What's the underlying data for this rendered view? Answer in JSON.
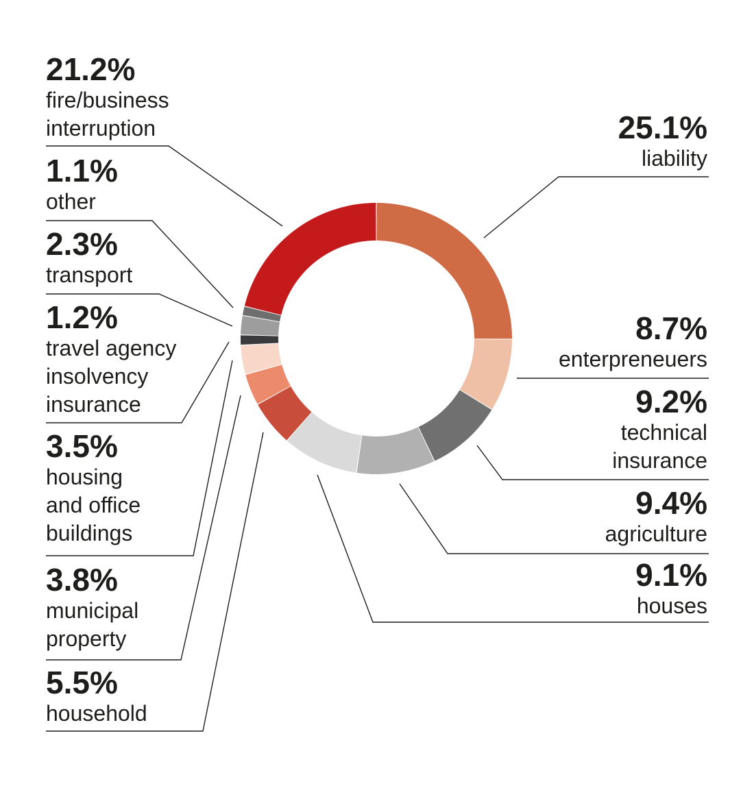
{
  "chart_data": {
    "type": "pie",
    "donut": true,
    "slices": [
      {
        "key": "liability",
        "value": 25.1,
        "pct_label": "25.1%",
        "label_lines": [
          "liability"
        ],
        "color": "#cf6b45"
      },
      {
        "key": "enterpreneuers",
        "value": 8.7,
        "pct_label": "8.7%",
        "label_lines": [
          "enterpreneuers"
        ],
        "color": "#efbfa6"
      },
      {
        "key": "technical",
        "value": 9.2,
        "pct_label": "9.2%",
        "label_lines": [
          "technical",
          "insurance"
        ],
        "color": "#707070"
      },
      {
        "key": "agriculture",
        "value": 9.4,
        "pct_label": "9.4%",
        "label_lines": [
          "agriculture"
        ],
        "color": "#b1b1b1"
      },
      {
        "key": "houses",
        "value": 9.1,
        "pct_label": "9.1%",
        "label_lines": [
          "houses"
        ],
        "color": "#dadadb"
      },
      {
        "key": "household",
        "value": 5.5,
        "pct_label": "5.5%",
        "label_lines": [
          "household"
        ],
        "color": "#c84d3a"
      },
      {
        "key": "municipal",
        "value": 3.8,
        "pct_label": "3.8%",
        "label_lines": [
          "municipal",
          "property"
        ],
        "color": "#ec8a6c"
      },
      {
        "key": "housing",
        "value": 3.5,
        "pct_label": "3.5%",
        "label_lines": [
          "housing",
          "and office",
          "buildings"
        ],
        "color": "#f8d7c9"
      },
      {
        "key": "travel",
        "value": 1.2,
        "pct_label": "1.2%",
        "label_lines": [
          "travel agency",
          "insolvency",
          "insurance"
        ],
        "color": "#3a3a3c"
      },
      {
        "key": "transport",
        "value": 2.3,
        "pct_label": "2.3%",
        "label_lines": [
          "transport"
        ],
        "color": "#9d9d9d"
      },
      {
        "key": "other",
        "value": 1.1,
        "pct_label": "1.1%",
        "label_lines": [
          "other"
        ],
        "color": "#6e6e6e"
      },
      {
        "key": "fire",
        "value": 21.2,
        "pct_label": "21.2%",
        "label_lines": [
          "fire/business",
          "interruption"
        ],
        "color": "#c41a1b"
      }
    ]
  }
}
